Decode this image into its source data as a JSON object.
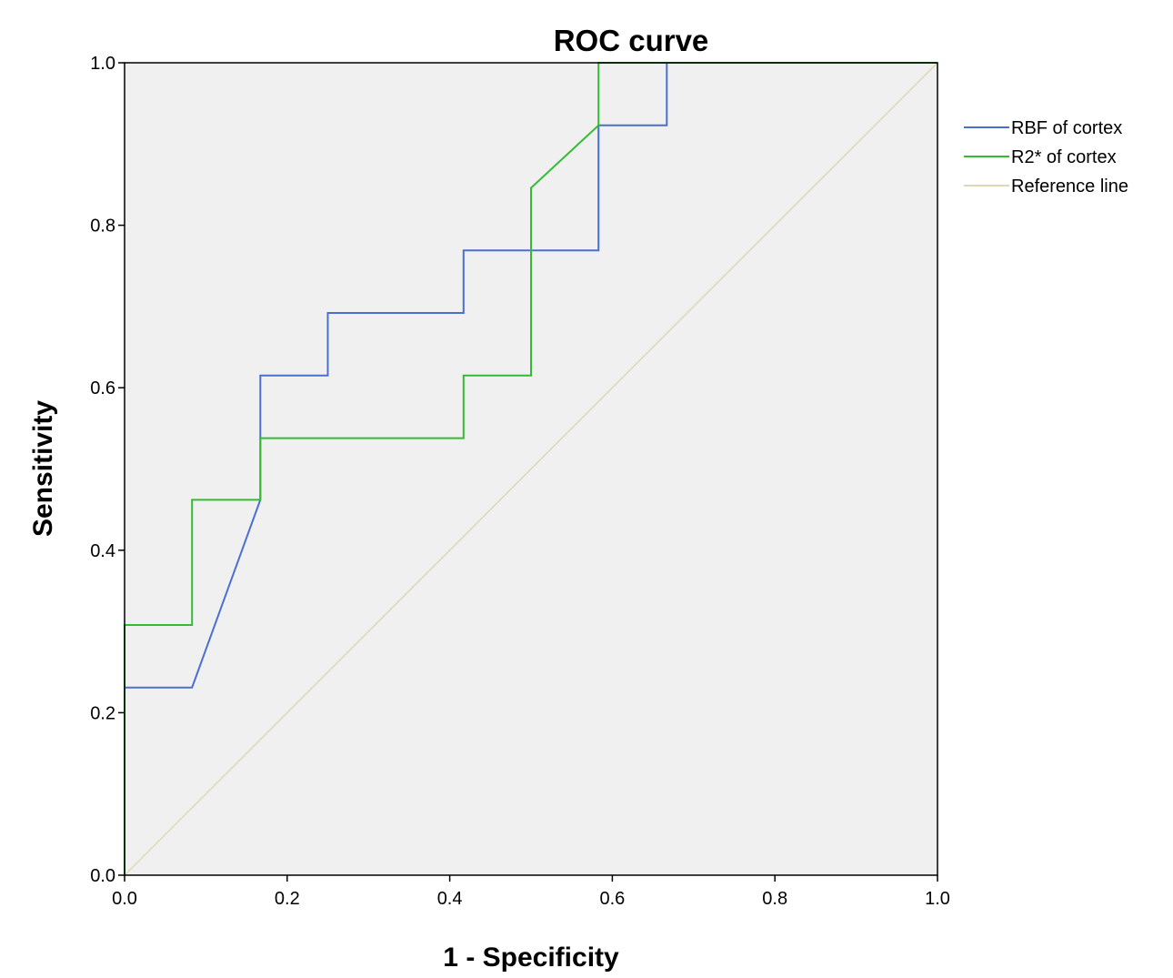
{
  "chart_data": {
    "type": "line",
    "title": "ROC curve",
    "xlabel": "1 - Specificity",
    "ylabel": "Sensitivity",
    "xlim": [
      0,
      1
    ],
    "ylim": [
      0,
      1
    ],
    "xticks": [
      "0.0",
      "0.2",
      "0.4",
      "0.6",
      "0.8",
      "1.0"
    ],
    "yticks": [
      "0.0",
      "0.2",
      "0.4",
      "0.6",
      "0.8",
      "1.0"
    ],
    "grid": false,
    "legend": "right",
    "colors": {
      "background": "#f0f0f0",
      "frame": "#000000"
    },
    "series": [
      {
        "name": "RBF of cortex",
        "color": "#4a6fcf",
        "x": [
          0,
          0,
          0,
          0.083,
          0.083,
          0.167,
          0.167,
          0.25,
          0.25,
          0.417,
          0.417,
          0.583,
          0.583,
          0.667,
          0.667,
          1.0
        ],
        "y": [
          0,
          0.231,
          0.231,
          0.231,
          0.231,
          0.462,
          0.615,
          0.615,
          0.692,
          0.692,
          0.769,
          0.769,
          0.923,
          0.923,
          1.0,
          1.0
        ]
      },
      {
        "name": "R2* of cortex",
        "color": "#33bb33",
        "x": [
          0,
          0,
          0.083,
          0.083,
          0.167,
          0.167,
          0.417,
          0.417,
          0.5,
          0.5,
          0.583,
          0.583,
          1.0
        ],
        "y": [
          0,
          0.308,
          0.308,
          0.462,
          0.462,
          0.538,
          0.538,
          0.615,
          0.615,
          0.846,
          0.923,
          1.0,
          1.0
        ]
      },
      {
        "name": "Reference line",
        "color": "#ddd8b8",
        "x": [
          0,
          1
        ],
        "y": [
          0,
          1
        ]
      }
    ]
  }
}
